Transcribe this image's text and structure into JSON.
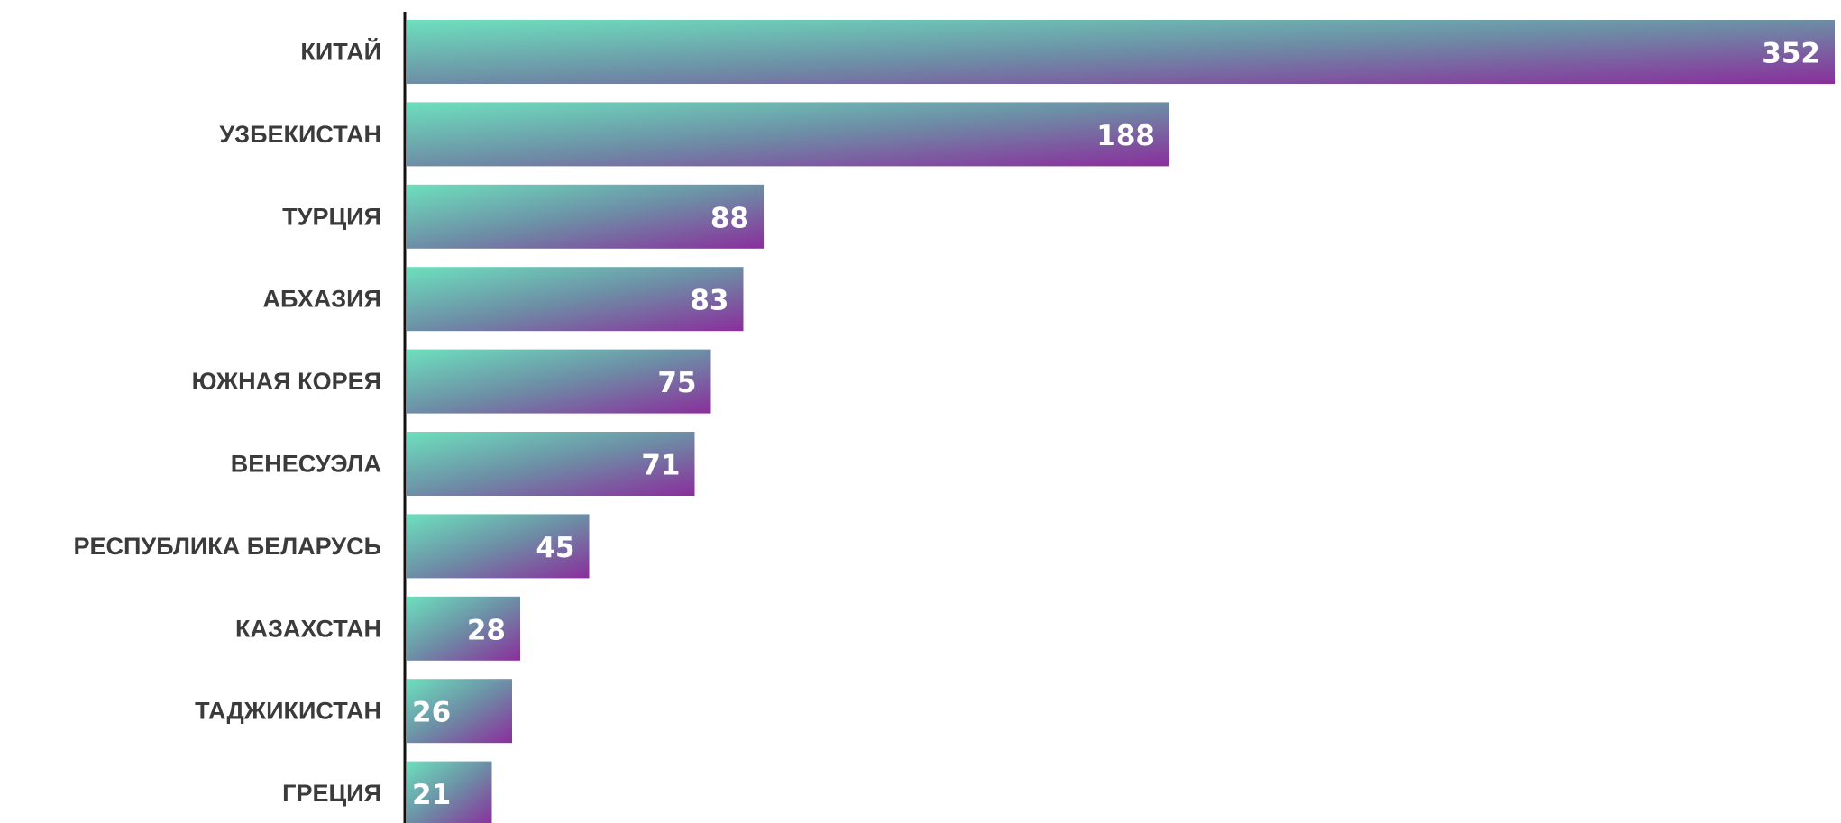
{
  "chart_data": {
    "type": "bar",
    "orientation": "horizontal",
    "categories": [
      "КИТАЙ",
      "УЗБЕКИСТАН",
      "ТУРЦИЯ",
      "АБХАЗИЯ",
      "ЮЖНАЯ КОРЕЯ",
      "ВЕНЕСУЭЛА",
      "РЕСПУБЛИКА БЕЛАРУСЬ",
      "КАЗАХСТАН",
      "ТАДЖИКИСТАН",
      "ГРЕЦИЯ"
    ],
    "values": [
      352,
      188,
      88,
      83,
      75,
      71,
      45,
      28,
      26,
      21
    ],
    "title": "",
    "xlabel": "",
    "ylabel": "",
    "xlim": [
      0,
      352
    ],
    "grid": false,
    "legend": "none",
    "data_labels": true,
    "colors": {
      "gradient_start": "#6de0bd",
      "gradient_mid": "#6d8ea6",
      "gradient_end": "#8a2e9c",
      "axis": "#111111",
      "category_text": "#3b3b3b",
      "value_text": "#ffffff"
    }
  }
}
